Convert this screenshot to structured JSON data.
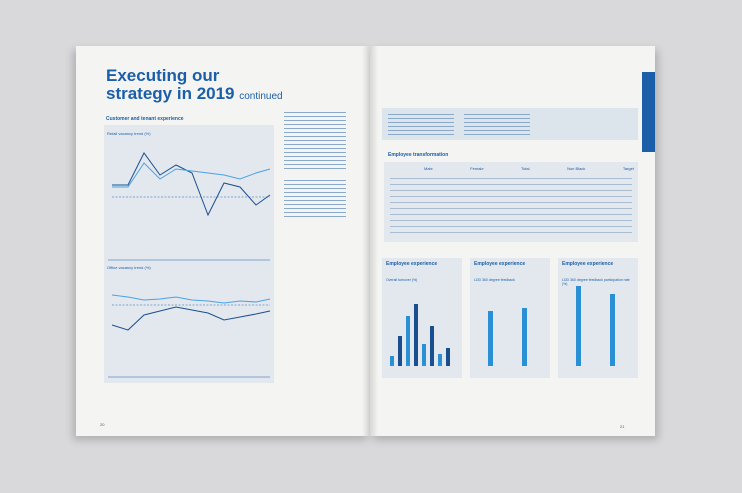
{
  "left_page": {
    "title_line1": "Executing our",
    "title_line2": "strategy in 2019",
    "title_suffix": "continued",
    "section": "Customer and tenant experience",
    "chart1_title": "Retail vacancy trend (%)",
    "chart2_title": "Office vacancy trend (%)",
    "page_number": "20"
  },
  "right_page": {
    "section": "Employee transformation",
    "table_headers": [
      "Male",
      "Female",
      "Total",
      "Non Black",
      "Target"
    ],
    "panels": [
      {
        "title": "Employee experience",
        "subtitle": "Overall turnover (%)"
      },
      {
        "title": "Employee experience",
        "subtitle": "LDD 360 degree feedback"
      },
      {
        "title": "Employee experience",
        "subtitle": "LDD 360 degree feedback participation rate (%)"
      }
    ],
    "page_number": "21"
  }
}
